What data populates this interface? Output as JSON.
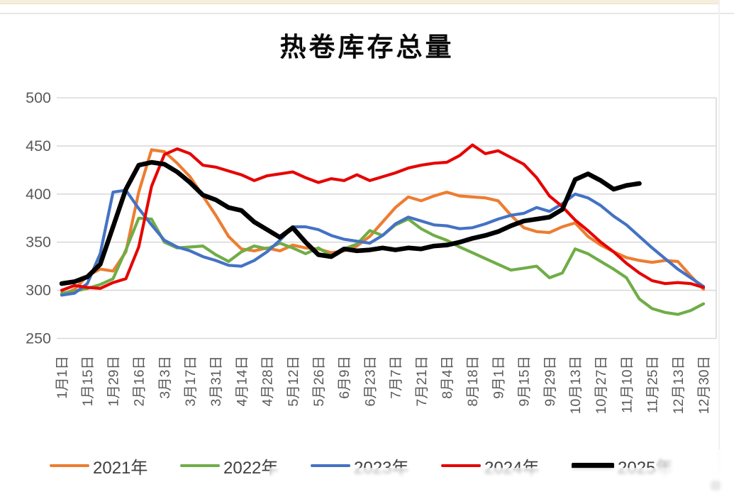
{
  "page": {
    "title": "热卷库存总量"
  },
  "colors": {
    "grid": "#d9d9d9",
    "axis_text": "#595959",
    "legend_text": "#404040",
    "title_text": "#0a0a0a",
    "top_strip": "#f4efdd"
  },
  "chart_data": {
    "type": "line",
    "title": "热卷库存总量",
    "xlabel": "",
    "ylabel": "",
    "ylim": [
      250,
      500
    ],
    "yticks": [
      "500",
      "450",
      "400",
      "350",
      "300",
      "250"
    ],
    "grid": true,
    "legend_position": "bottom",
    "x_labels": [
      "1月1日",
      "1月15日",
      "1月29日",
      "2月16日",
      "3月3日",
      "3月17日",
      "3月31日",
      "4月14日",
      "4月28日",
      "5月12日",
      "5月26日",
      "6月9日",
      "6月23日",
      "7月7日",
      "7月21日",
      "8月4日",
      "8月18日",
      "9月1日",
      "9月15日",
      "9月29日",
      "10月13日",
      "10月27日",
      "11月10日",
      "11月25日",
      "12月13日",
      "12月30日"
    ],
    "x_label_every": 2,
    "x_count": 51,
    "series": [
      {
        "name": "2021年",
        "color": "#ED7D31",
        "width": 4.2,
        "values": [
          295,
          301,
          315,
          322,
          320,
          340,
          402,
          446,
          444,
          432,
          418,
          398,
          378,
          356,
          343,
          341,
          344,
          341,
          347,
          344,
          343,
          339,
          341,
          346,
          356,
          371,
          386,
          397,
          393,
          398,
          402,
          398,
          397,
          396,
          393,
          378,
          365,
          361,
          360,
          366,
          370,
          356,
          347,
          340,
          334,
          331,
          329,
          331,
          330,
          315,
          301
        ]
      },
      {
        "name": "2022年",
        "color": "#70AD47",
        "width": 4.2,
        "values": [
          297,
          299,
          302,
          306,
          312,
          342,
          375,
          374,
          350,
          344,
          345,
          346,
          337,
          330,
          340,
          346,
          343,
          349,
          344,
          338,
          344,
          336,
          343,
          348,
          362,
          357,
          368,
          374,
          364,
          357,
          352,
          345,
          339,
          333,
          327,
          321,
          323,
          325,
          313,
          318,
          343,
          338,
          330,
          322,
          313,
          291,
          281,
          277,
          275,
          279,
          286
        ]
      },
      {
        "name": "2023年",
        "color": "#4472C4",
        "width": 4.2,
        "values": [
          295,
          297,
          307,
          338,
          402,
          404,
          385,
          368,
          352,
          345,
          341,
          335,
          331,
          326,
          325,
          331,
          340,
          352,
          366,
          366,
          363,
          357,
          353,
          351,
          349,
          357,
          369,
          376,
          372,
          368,
          367,
          364,
          365,
          369,
          374,
          378,
          380,
          386,
          382,
          390,
          400,
          396,
          388,
          377,
          368,
          356,
          344,
          333,
          322,
          313,
          304
        ]
      },
      {
        "name": "2024年",
        "color": "#E60505",
        "width": 4.2,
        "values": [
          300,
          305,
          303,
          302,
          308,
          312,
          345,
          408,
          441,
          447,
          442,
          430,
          428,
          424,
          420,
          414,
          419,
          421,
          423,
          417,
          412,
          416,
          414,
          420,
          414,
          418,
          422,
          427,
          430,
          432,
          433,
          440,
          451,
          442,
          445,
          438,
          431,
          417,
          398,
          387,
          373,
          362,
          350,
          340,
          328,
          318,
          310,
          307,
          308,
          307,
          303
        ]
      },
      {
        "name": "2025年",
        "color": "#000000",
        "width": 6.5,
        "values": [
          307,
          309,
          314,
          327,
          366,
          405,
          430,
          433,
          431,
          423,
          412,
          399,
          394,
          386,
          383,
          371,
          363,
          355,
          365,
          350,
          337,
          335,
          343,
          341,
          342,
          344,
          342,
          344,
          343,
          346,
          347,
          350,
          354,
          357,
          361,
          367,
          372,
          374,
          376,
          384,
          415,
          421,
          414,
          405,
          409,
          411,
          null,
          null,
          null,
          null,
          null
        ]
      }
    ]
  }
}
